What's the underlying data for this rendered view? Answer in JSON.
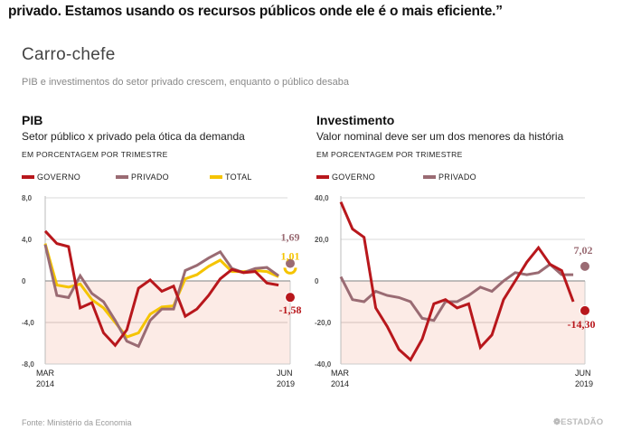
{
  "quote": "privado. Estamos usando os recursos públicos onde ele é o mais eficiente.”",
  "title": "Carro-chefe",
  "subtitle": "PIB e investimentos do setor privado crescem, enquanto o público desaba",
  "footer": {
    "source": "Fonte:  Ministério da Economia",
    "brand": "❁ESTADÃO"
  },
  "colors": {
    "governo": "#b8171c",
    "privado": "#9a6b73",
    "total": "#f5c400",
    "negative_area": "#fcebe6",
    "grid": "#dddddd",
    "zero": "#999999"
  },
  "chart_data": [
    {
      "type": "line",
      "title": "PIB",
      "subtitle": "Setor público x privado pela ótica da demanda",
      "unit": "EM PORCENTAGEM POR TRIMESTRE",
      "ylim": [
        -8,
        8
      ],
      "yticks": [
        8,
        4,
        0,
        -4,
        -8
      ],
      "ytick_labels": [
        "8,0",
        "4,0",
        "0",
        "-4,0",
        "-8,0"
      ],
      "x_start_label": [
        "MAR",
        "2014"
      ],
      "x_end_label": [
        "JUN",
        "2019"
      ],
      "grid": true,
      "legend": "top-left",
      "series": [
        {
          "name": "GOVERNO",
          "color": "#b8171c",
          "end_label": "-1,58",
          "values": [
            4.8,
            3.6,
            3.3,
            -2.6,
            -2.1,
            -5.0,
            -6.2,
            -4.7,
            -0.7,
            0.1,
            -1.0,
            -0.5,
            -3.4,
            -2.7,
            -1.4,
            0.2,
            1.1,
            0.8,
            0.9,
            -0.2,
            -0.4,
            -1.58
          ]
        },
        {
          "name": "PRIVADO",
          "color": "#9a6b73",
          "end_label": "1,69",
          "values": [
            3.5,
            -1.4,
            -1.6,
            0.5,
            -1.2,
            -2.0,
            -3.8,
            -5.8,
            -6.3,
            -3.8,
            -2.7,
            -2.7,
            1.0,
            1.5,
            2.2,
            2.8,
            1.2,
            0.8,
            1.2,
            1.3,
            0.5,
            1.69
          ]
        },
        {
          "name": "TOTAL",
          "color": "#f5c400",
          "end_label": "1,01",
          "values": [
            3.6,
            -0.4,
            -0.6,
            -0.3,
            -1.8,
            -2.6,
            -4.0,
            -5.4,
            -5.0,
            -3.2,
            -2.5,
            -2.4,
            0.2,
            0.6,
            1.4,
            2.0,
            0.9,
            0.9,
            1.0,
            0.9,
            0.4,
            1.01
          ]
        }
      ]
    },
    {
      "type": "line",
      "title": "Investimento",
      "subtitle": "Valor nominal deve ser um dos menores da história",
      "unit": "EM PORCENTAGEM POR TRIMESTRE",
      "ylim": [
        -40,
        40
      ],
      "yticks": [
        40,
        20,
        0,
        -20,
        -40
      ],
      "ytick_labels": [
        "40,0",
        "20,0",
        "0",
        "-20,0",
        "-40,0"
      ],
      "x_start_label": [
        "MAR",
        "2014"
      ],
      "x_end_label": [
        "JUN",
        "2019"
      ],
      "grid": true,
      "legend": "top-left",
      "series": [
        {
          "name": "GOVERNO",
          "color": "#b8171c",
          "end_label": "-14,30",
          "values": [
            38,
            25,
            21,
            -13,
            -22,
            -33,
            -38,
            -28,
            -11,
            -9,
            -13,
            -11,
            -32,
            -26,
            -9,
            0,
            9,
            16,
            8,
            5,
            -10,
            -14.3
          ]
        },
        {
          "name": "PRIVADO",
          "color": "#9a6b73",
          "end_label": "7,02",
          "values": [
            2,
            -9,
            -10,
            -5,
            -7,
            -8,
            -10,
            -18,
            -19,
            -10,
            -10,
            -7,
            -3,
            -5,
            0,
            4,
            3,
            4,
            8,
            3,
            3,
            7.02
          ]
        }
      ]
    }
  ]
}
